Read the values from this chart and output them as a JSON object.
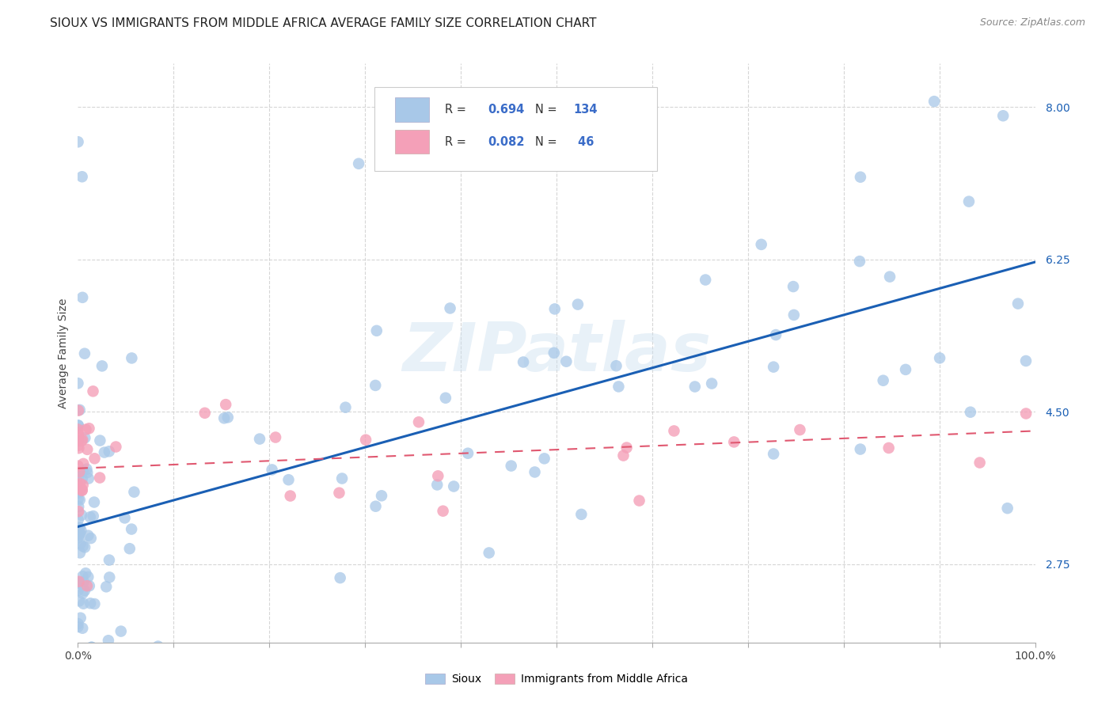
{
  "title": "SIOUX VS IMMIGRANTS FROM MIDDLE AFRICA AVERAGE FAMILY SIZE CORRELATION CHART",
  "source": "Source: ZipAtlas.com",
  "ylabel": "Average Family Size",
  "xlim": [
    0.0,
    1.0
  ],
  "ylim": [
    1.85,
    8.5
  ],
  "yticks": [
    2.75,
    4.5,
    6.25,
    8.0
  ],
  "ytick_labels": [
    "2.75",
    "4.50",
    "6.25",
    "8.00"
  ],
  "color_sioux": "#a8c8e8",
  "color_immigrants": "#f4a0b8",
  "line_color_sioux": "#1a5fb4",
  "line_color_immigrants": "#e05870",
  "R_sioux": 0.694,
  "N_sioux": 134,
  "R_immigrants": 0.082,
  "N_immigrants": 46,
  "watermark": "ZIPatlas",
  "background_color": "#ffffff",
  "grid_color": "#cccccc",
  "title_fontsize": 11,
  "axis_label_fontsize": 10,
  "tick_fontsize": 10,
  "legend_color": "#3a6cc8",
  "sioux_trend": [
    3.18,
    6.22
  ],
  "imm_trend": [
    3.85,
    4.28
  ]
}
